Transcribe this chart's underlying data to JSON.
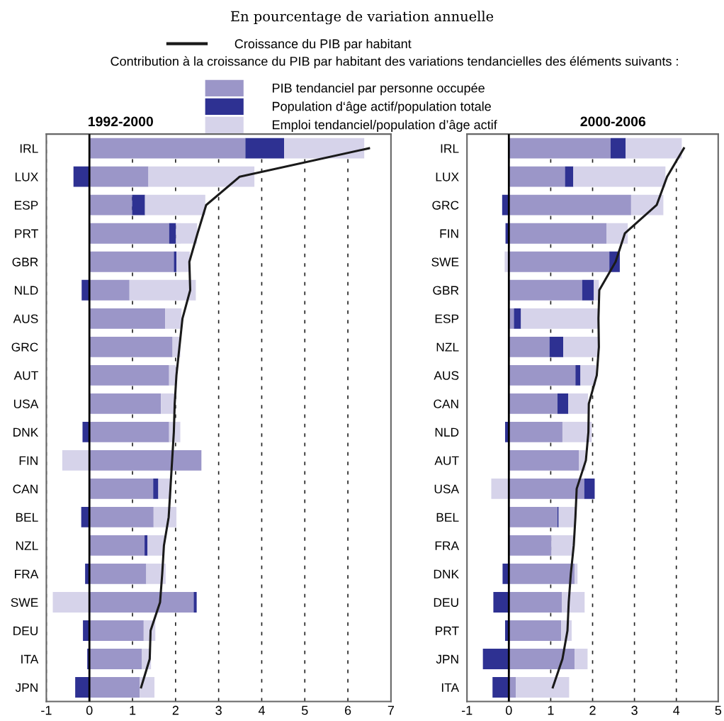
{
  "chart_data": [
    {
      "type": "bar",
      "orientation": "horizontal",
      "stacked": true,
      "title": "1992-2000",
      "annotations": [
        "En pourcentage de variation annuelle"
      ],
      "legend": "top",
      "legend_title": "Contribution à la croissance du PIB par habitant des variations tendancielles des éléments suivants :",
      "categories": [
        "IRL",
        "LUX",
        "ESP",
        "PRT",
        "GBR",
        "NLD",
        "AUS",
        "GRC",
        "AUT",
        "USA",
        "DNK",
        "FIN",
        "CAN",
        "BEL",
        "NZL",
        "FRA",
        "SWE",
        "DEU",
        "ITA",
        "JPN"
      ],
      "series": [
        {
          "name": "PIB tendanciel par personne occupée",
          "color": "#9b96c8",
          "values": [
            3.62,
            1.37,
            0.99,
            1.85,
            1.96,
            0.93,
            1.76,
            1.93,
            1.85,
            1.66,
            1.85,
            2.6,
            1.48,
            1.49,
            1.28,
            1.32,
            2.42,
            1.26,
            1.22,
            1.17
          ]
        },
        {
          "name": "Population d‘âge actif/population totale",
          "color": "#2e3192",
          "values": [
            0.9,
            -0.37,
            0.3,
            0.16,
            0.06,
            -0.18,
            null,
            null,
            null,
            null,
            -0.16,
            null,
            0.12,
            -0.19,
            0.07,
            -0.1,
            0.07,
            -0.15,
            -0.05,
            -0.33
          ]
        },
        {
          "name": "Emploi tendanciel/population d’âge actif",
          "color": "#d6d3ea",
          "values": [
            1.86,
            2.46,
            1.4,
            0.49,
            0.31,
            1.54,
            0.38,
            0.18,
            0.16,
            0.32,
            0.26,
            -0.63,
            0.3,
            0.53,
            0.39,
            0.45,
            -0.85,
            0.27,
            0.21,
            0.34
          ]
        },
        {
          "name": "Croissance du PIB par habitant",
          "type": "line",
          "color": "#1a1a1a",
          "values": [
            6.49,
            3.49,
            2.71,
            2.51,
            2.32,
            2.34,
            2.16,
            2.09,
            2.02,
            1.98,
            1.96,
            1.92,
            1.88,
            1.84,
            1.73,
            1.69,
            1.64,
            1.42,
            1.4,
            1.2
          ]
        }
      ],
      "xlim": [
        -1,
        7
      ],
      "xticks": [
        -1,
        0,
        1,
        2,
        3,
        4,
        5,
        6,
        7
      ],
      "grid": "x",
      "ref_lines": [
        {
          "axis": "x",
          "value": 0,
          "color": "#000000",
          "line_style": "solid"
        }
      ]
    },
    {
      "type": "bar",
      "orientation": "horizontal",
      "stacked": true,
      "title": "2000-2006",
      "categories": [
        "IRL",
        "LUX",
        "GRC",
        "FIN",
        "SWE",
        "GBR",
        "ESP",
        "NZL",
        "AUS",
        "CAN",
        "NLD",
        "AUT",
        "USA",
        "BEL",
        "FRA",
        "DNK",
        "DEU",
        "PRT",
        "JPN",
        "ITA"
      ],
      "series": [
        {
          "color": "#9b96c8",
          "values": [
            2.43,
            1.34,
            2.92,
            2.33,
            2.4,
            1.75,
            0.12,
            0.97,
            1.59,
            1.16,
            1.28,
            1.67,
            1.8,
            1.16,
            1.02,
            1.57,
            1.27,
            1.25,
            1.57,
            0.17
          ]
        },
        {
          "color": "#2e3192",
          "values": [
            0.36,
            0.2,
            -0.16,
            -0.08,
            0.25,
            0.28,
            0.17,
            0.33,
            0.12,
            0.26,
            -0.09,
            null,
            0.25,
            0.03,
            null,
            -0.15,
            -0.37,
            -0.09,
            -0.62,
            -0.39
          ]
        },
        {
          "color": "#d6d3ea",
          "values": [
            1.34,
            2.2,
            0.77,
            0.51,
            -0.1,
            0.12,
            1.84,
            0.83,
            0.37,
            0.47,
            0.7,
            0.16,
            -0.42,
            0.41,
            0.53,
            0.07,
            0.54,
            0.25,
            0.31,
            1.27
          ]
        },
        {
          "type": "line",
          "color": "#1a1a1a",
          "values": [
            4.18,
            3.78,
            3.53,
            2.77,
            2.55,
            2.16,
            2.14,
            2.15,
            2.1,
            1.91,
            1.9,
            1.84,
            1.62,
            1.59,
            1.55,
            1.48,
            1.43,
            1.4,
            1.28,
            1.05
          ]
        }
      ],
      "xlim": [
        -1,
        5
      ],
      "xticks": [
        -1,
        0,
        1,
        2,
        3,
        4,
        5
      ],
      "grid": "x",
      "ref_lines": [
        {
          "axis": "x",
          "value": 0,
          "color": "#000000",
          "line_style": "solid"
        }
      ]
    }
  ]
}
